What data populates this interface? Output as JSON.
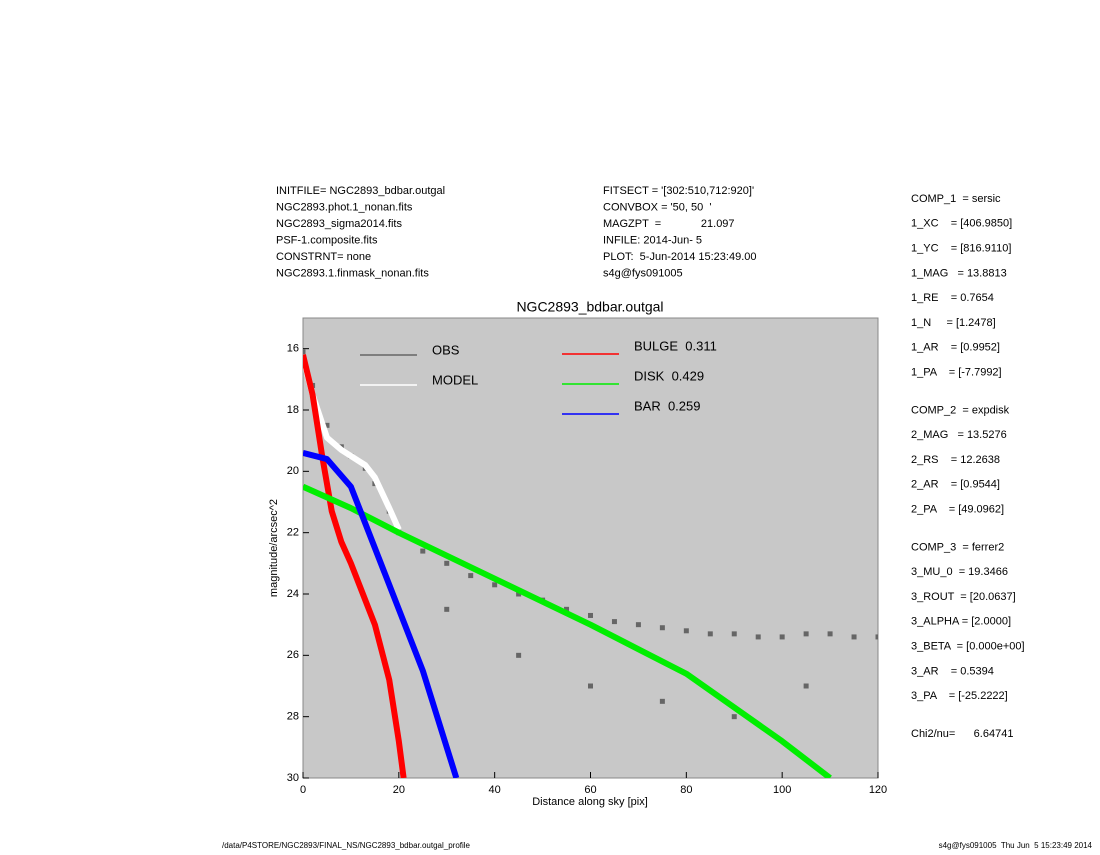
{
  "header": {
    "left": [
      "INITFILE= NGC2893_bdbar.outgal",
      "NGC2893.phot.1_nonan.fits",
      "NGC2893_sigma2014.fits",
      "PSF-1.composite.fits",
      "CONSTRNT= none",
      "NGC2893.1.finmask_nonan.fits"
    ],
    "middle": [
      "FITSECT = '[302:510,712:920]'",
      "CONVBOX = '50, 50  '",
      "MAGZPT  =             21.097",
      "INFILE: 2014-Jun- 5",
      "PLOT:  5-Jun-2014 15:23:49.00",
      "s4g@fys091005"
    ]
  },
  "params": [
    [
      "COMP_1  = sersic",
      "1_XC    = [406.9850]",
      "1_YC    = [816.9110]",
      "1_MAG   = 13.8813",
      "1_RE    = 0.7654",
      "1_N     = [1.2478]",
      "1_AR    = [0.9952]",
      "1_PA    = [-7.7992]"
    ],
    [
      "COMP_2  = expdisk",
      "2_MAG   = 13.5276",
      "2_RS    = 12.2638",
      "2_AR    = [0.9544]",
      "2_PA    = [49.0962]"
    ],
    [
      "COMP_3  = ferrer2",
      "3_MU_0  = 19.3466",
      "3_ROUT  = [20.0637]",
      "3_ALPHA = [2.0000]",
      "3_BETA  = [0.000e+00]",
      "3_AR    = 0.5394",
      "3_PA    = [-25.2222]"
    ],
    [
      "Chi2/nu=      6.64741"
    ]
  ],
  "footer": {
    "left": "/data/P4STORE/NGC2893/FINAL_NS/NGC2893_bdbar.outgal_profile",
    "right": "s4g@fys091005  Thu Jun  5 15:23:49 2014"
  },
  "chart_data": {
    "type": "scatter",
    "title": "NGC2893_bdbar.outgal",
    "x_label": "Distance along sky [pix]",
    "y_label": "magnitude/arcsec^2",
    "xlim": [
      0,
      120
    ],
    "ylim": [
      30,
      15
    ],
    "xticks": [
      0,
      20,
      40,
      60,
      80,
      100,
      120
    ],
    "yticks": [
      16,
      18,
      20,
      22,
      24,
      26,
      28,
      30
    ],
    "background": "#c8c8c8",
    "series": [
      {
        "name": "OBS",
        "color": "#666666",
        "mode": "markers",
        "x": [
          0,
          2,
          5,
          8,
          10,
          13,
          15,
          18,
          20,
          25,
          30,
          35,
          40,
          45,
          50,
          55,
          60,
          65,
          70,
          75,
          80,
          85,
          90,
          95,
          100,
          105,
          110,
          115,
          120,
          30,
          45,
          60,
          75,
          90,
          105
        ],
        "values": [
          16.1,
          17.2,
          18.5,
          19.2,
          19.5,
          19.9,
          20.4,
          21.3,
          22.0,
          22.6,
          23.0,
          23.4,
          23.7,
          24.0,
          24.2,
          24.5,
          24.7,
          24.9,
          25.0,
          25.1,
          25.2,
          25.3,
          25.3,
          25.4,
          25.4,
          25.3,
          25.3,
          25.4,
          25.4,
          24.5,
          26.0,
          27.0,
          27.5,
          28.0,
          27.0
        ]
      },
      {
        "name": "MODEL",
        "color": "#ffffff",
        "mode": "lines",
        "x": [
          0,
          2,
          5,
          8,
          10,
          13,
          15,
          18,
          20
        ],
        "values": [
          16.3,
          17.5,
          18.9,
          19.3,
          19.5,
          19.8,
          20.2,
          21.2,
          21.9
        ]
      },
      {
        "name": "BULGE  0.311",
        "color": "#ff0000",
        "mode": "lines",
        "x": [
          0,
          2,
          4,
          6,
          8,
          10,
          13,
          15,
          18,
          20,
          21
        ],
        "values": [
          16.2,
          17.5,
          19.5,
          21.3,
          22.3,
          23.0,
          24.2,
          25.0,
          26.8,
          28.8,
          30
        ]
      },
      {
        "name": "DISK  0.429",
        "color": "#00ee00",
        "mode": "lines",
        "x": [
          0,
          10,
          20,
          40,
          60,
          80,
          100,
          110
        ],
        "values": [
          20.5,
          21.2,
          22.0,
          23.5,
          25.0,
          26.6,
          28.8,
          30
        ]
      },
      {
        "name": "BAR  0.259",
        "color": "#0000ff",
        "mode": "lines",
        "x": [
          0,
          5,
          10,
          15,
          20,
          25,
          30,
          32
        ],
        "values": [
          19.4,
          19.6,
          20.5,
          22.5,
          24.5,
          26.5,
          29.0,
          30
        ]
      }
    ]
  }
}
